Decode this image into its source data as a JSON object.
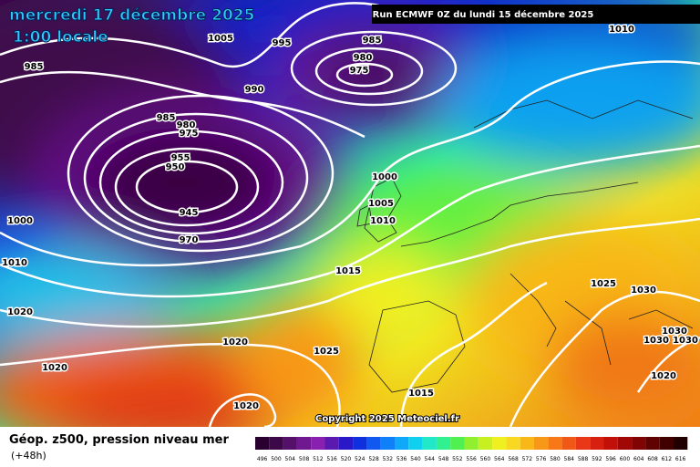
{
  "header": {
    "date": "mercredi 17 décembre 2025",
    "time": "1:00 locale",
    "run": "Run ECMWF 0Z du lundi 15 décembre 2025"
  },
  "isobar_labels": [
    1005,
    995,
    985,
    980,
    975,
    1010,
    985,
    990,
    985,
    980,
    975,
    955,
    950,
    945,
    970,
    1000,
    1005,
    1010,
    1000,
    1010,
    1015,
    1020,
    1020,
    1025,
    1020,
    1025,
    1030,
    1030,
    1030,
    1030,
    1020,
    1015,
    1020
  ],
  "copyright": "Copyright 2025 Meteociel.fr",
  "legend": {
    "title": "Géop. z500, pression niveau mer",
    "lead": "(+48h)",
    "values": [
      496,
      500,
      504,
      508,
      512,
      516,
      520,
      524,
      528,
      532,
      536,
      540,
      544,
      548,
      552,
      556,
      560,
      564,
      568,
      572,
      576,
      580,
      584,
      588,
      592,
      596,
      600,
      604,
      608,
      612,
      616
    ],
    "colors": [
      "#2a0030",
      "#3c0848",
      "#55106a",
      "#701890",
      "#8a20b0",
      "#5a1ab0",
      "#2a18c8",
      "#1030e0",
      "#1058f0",
      "#1080f8",
      "#10a8f8",
      "#10d0f0",
      "#20e8c8",
      "#30f090",
      "#50f050",
      "#90f030",
      "#c8f020",
      "#f0f020",
      "#f8d820",
      "#f8b818",
      "#f89818",
      "#f87818",
      "#f05818",
      "#e83818",
      "#d82010",
      "#c01008",
      "#a00808",
      "#800404",
      "#600202",
      "#400000",
      "#200000"
    ]
  }
}
